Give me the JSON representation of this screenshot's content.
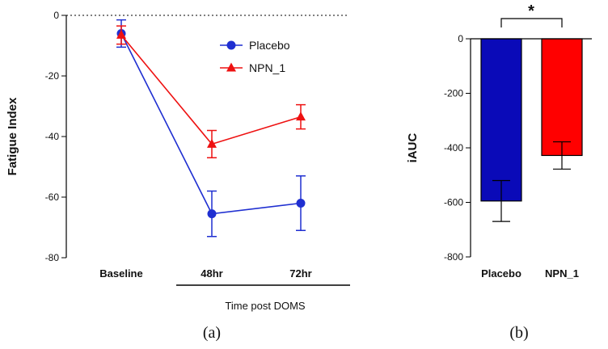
{
  "chart_data": [
    {
      "type": "line",
      "panel_label": "(a)",
      "ylabel": "Fatigue Index",
      "xlabel": "Time post DOMS",
      "categories": [
        "Baseline",
        "48hr",
        "72hr"
      ],
      "ylim": [
        -80,
        0
      ],
      "yticks": [
        0,
        -20,
        -40,
        -60,
        -80
      ],
      "reference_line": 0,
      "legend_position": "top-right",
      "series": [
        {
          "name": "Placebo",
          "color": "#1f2fd1",
          "marker": "circle",
          "values": [
            -6,
            -65.5,
            -62
          ],
          "errors": [
            4.5,
            7.5,
            9
          ]
        },
        {
          "name": "NPN_1",
          "color": "#ee1111",
          "marker": "triangle",
          "values": [
            -6.5,
            -42.5,
            -33.5
          ],
          "errors": [
            3,
            4.5,
            4
          ]
        }
      ]
    },
    {
      "type": "bar",
      "panel_label": "(b)",
      "ylabel": "iAUC",
      "categories": [
        "Placebo",
        "NPN_1"
      ],
      "values": [
        -595,
        -428
      ],
      "errors": [
        75,
        50
      ],
      "colors": [
        "#0a0ab8",
        "#ff0000"
      ],
      "ylim": [
        -800,
        0
      ],
      "yticks": [
        0,
        -200,
        -400,
        -600,
        -800
      ],
      "significance": "*"
    }
  ]
}
